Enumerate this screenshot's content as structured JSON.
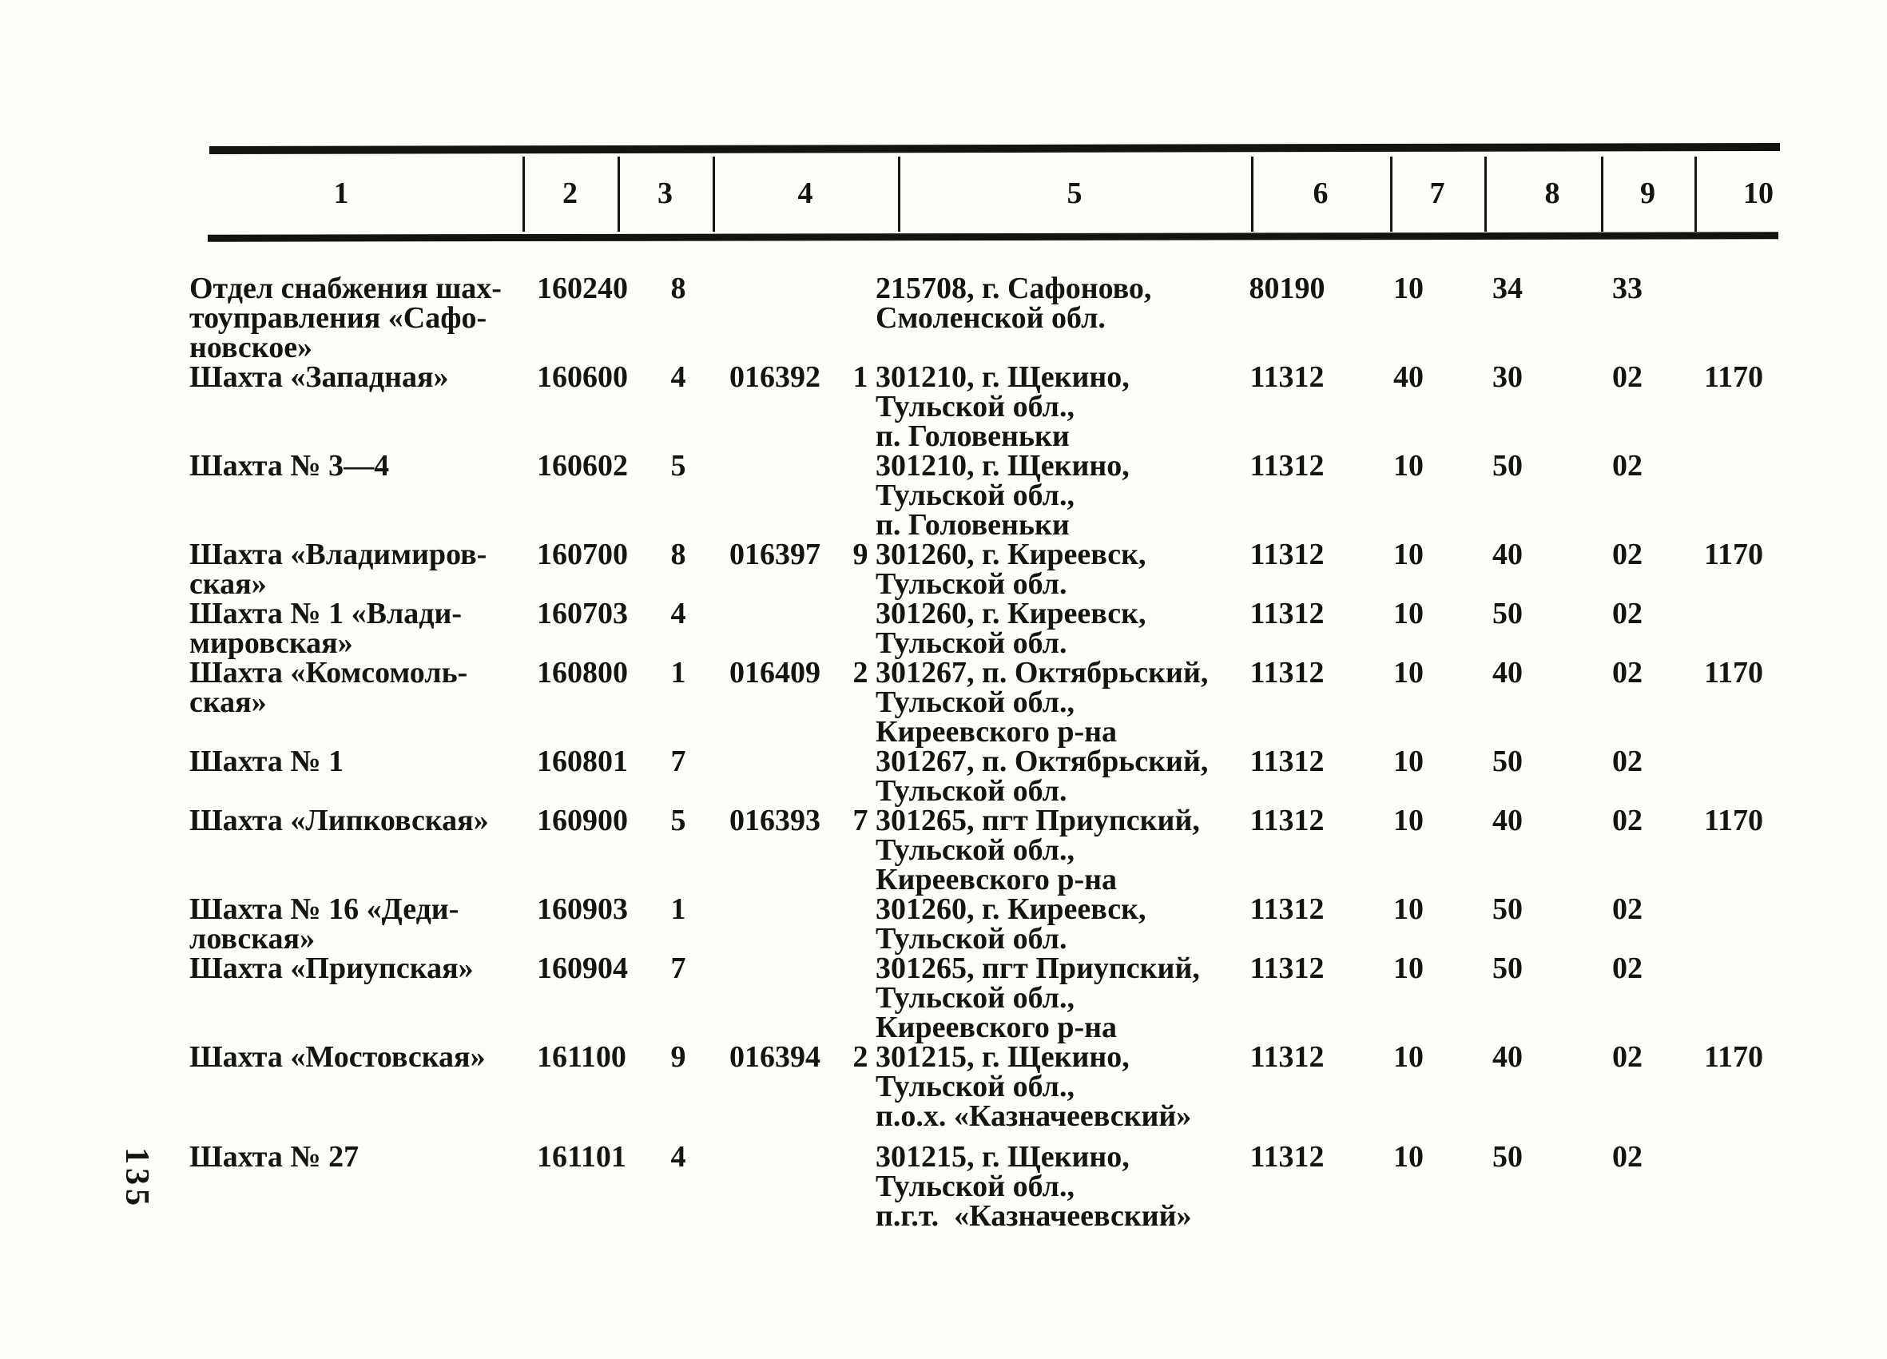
{
  "page_number": "135",
  "table": {
    "column_headers": [
      "1",
      "2",
      "3",
      "4",
      "5",
      "6",
      "7",
      "8",
      "9",
      "10"
    ],
    "rows": [
      {
        "name_lines": [
          "Отдел снабжения шах-",
          "тоуправления «Сафо-",
          "новское»"
        ],
        "col2": "160240",
        "col3": "8",
        "col4": "",
        "col4_check": "",
        "address_lines": [
          "215708, г. Сафоново,",
          "Смоленской обл."
        ],
        "col6": "80190",
        "col7": "10",
        "col8": "34",
        "col9": "33",
        "col10": ""
      },
      {
        "name_lines": [
          "Шахта «Западная»"
        ],
        "col2": "160600",
        "col3": "4",
        "col4": "016392",
        "col4_check": "1",
        "address_lines": [
          "301210, г. Щекино,",
          "Тульской обл.,",
          "п. Головеньки"
        ],
        "col6": "11312",
        "col7": "40",
        "col8": "30",
        "col9": "02",
        "col10": "1170"
      },
      {
        "name_lines": [
          "Шахта № 3—4"
        ],
        "col2": "160602",
        "col3": "5",
        "col4": "",
        "col4_check": "",
        "address_lines": [
          "301210, г. Щекино,",
          "Тульской обл.,",
          "п. Головеньки"
        ],
        "col6": "11312",
        "col7": "10",
        "col8": "50",
        "col9": "02",
        "col10": ""
      },
      {
        "name_lines": [
          "Шахта «Владимиров-",
          "ская»"
        ],
        "col2": "160700",
        "col3": "8",
        "col4": "016397",
        "col4_check": "9",
        "address_lines": [
          "301260, г. Киреевск,",
          "Тульской обл."
        ],
        "col6": "11312",
        "col7": "10",
        "col8": "40",
        "col9": "02",
        "col10": "1170"
      },
      {
        "name_lines": [
          "Шахта № 1 «Влади-",
          "мировская»"
        ],
        "col2": "160703",
        "col3": "4",
        "col4": "",
        "col4_check": "",
        "address_lines": [
          "301260, г. Киреевск,",
          "Тульской обл."
        ],
        "col6": "11312",
        "col7": "10",
        "col8": "50",
        "col9": "02",
        "col10": ""
      },
      {
        "name_lines": [
          "Шахта «Комсомоль-",
          "ская»"
        ],
        "col2": "160800",
        "col3": "1",
        "col4": "016409",
        "col4_check": "2",
        "address_lines": [
          "301267, п. Октябрьский,",
          "Тульской обл.,",
          "Киреевского р-на"
        ],
        "col6": "11312",
        "col7": "10",
        "col8": "40",
        "col9": "02",
        "col10": "1170"
      },
      {
        "name_lines": [
          "Шахта № 1"
        ],
        "col2": "160801",
        "col3": "7",
        "col4": "",
        "col4_check": "",
        "address_lines": [
          "301267, п. Октябрьский,",
          "Тульской обл."
        ],
        "col6": "11312",
        "col7": "10",
        "col8": "50",
        "col9": "02",
        "col10": ""
      },
      {
        "name_lines": [
          "Шахта «Липковская»"
        ],
        "col2": "160900",
        "col3": "5",
        "col4": "016393",
        "col4_check": "7",
        "address_lines": [
          "301265, пгт Приупский,",
          "Тульской обл.,",
          "Киреевского р-на"
        ],
        "col6": "11312",
        "col7": "10",
        "col8": "40",
        "col9": "02",
        "col10": "1170"
      },
      {
        "name_lines": [
          "Шахта № 16 «Деди-",
          "ловская»"
        ],
        "col2": "160903",
        "col3": "1",
        "col4": "",
        "col4_check": "",
        "address_lines": [
          "301260, г. Киреевск,",
          "Тульской обл."
        ],
        "col6": "11312",
        "col7": "10",
        "col8": "50",
        "col9": "02",
        "col10": ""
      },
      {
        "name_lines": [
          "Шахта «Приупская»"
        ],
        "col2": "160904",
        "col3": "7",
        "col4": "",
        "col4_check": "",
        "address_lines": [
          "301265, пгт Приупский,",
          "Тульской обл.,",
          "Киреевского р-на"
        ],
        "col6": "11312",
        "col7": "10",
        "col8": "50",
        "col9": "02",
        "col10": ""
      },
      {
        "name_lines": [
          "Шахта «Мостовская»"
        ],
        "col2": "161100",
        "col3": "9",
        "col4": "016394",
        "col4_check": "2",
        "address_lines": [
          "301215, г. Щекино,",
          "Тульской обл.,",
          "п.о.х. «Казначеевский»"
        ],
        "col6": "11312",
        "col7": "10",
        "col8": "40",
        "col9": "02",
        "col10": "1170"
      },
      {
        "name_lines": [
          "Шахта № 27"
        ],
        "col2": "161101",
        "col3": "4",
        "col4": "",
        "col4_check": "",
        "address_lines": [
          "301215, г. Щекино,",
          "Тульской обл.,",
          "п.г.т.  «Казначеевский»"
        ],
        "col6": "11312",
        "col7": "10",
        "col8": "50",
        "col9": "02",
        "col10": ""
      }
    ]
  }
}
